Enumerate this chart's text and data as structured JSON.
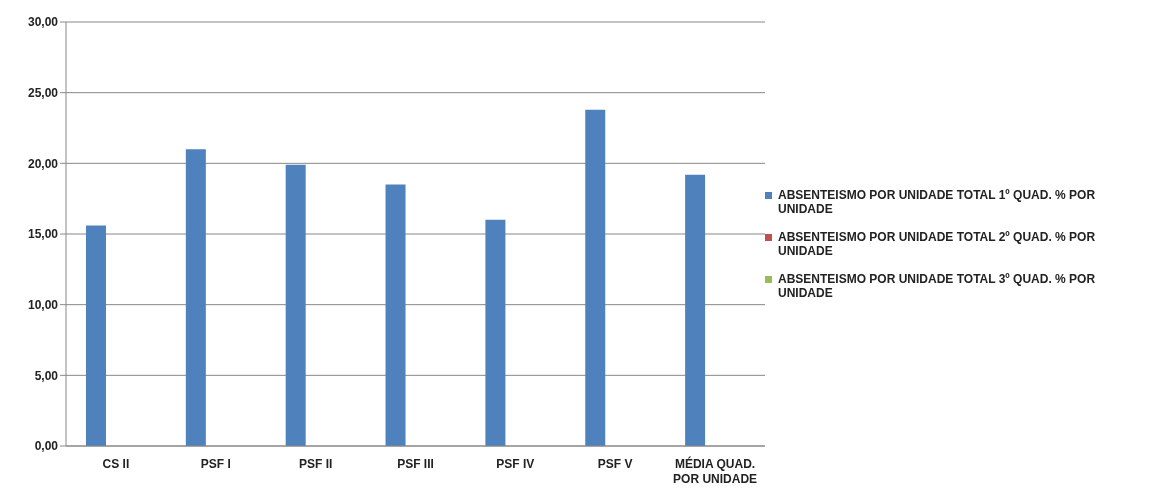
{
  "chart_data": {
    "type": "bar",
    "categories": [
      "CS II",
      "PSF I",
      "PSF II",
      "PSF III",
      "PSF IV",
      "PSF V",
      "MÉDIA QUAD. POR UNIDADE"
    ],
    "series": [
      {
        "name": "ABSENTEISMO POR UNIDADE TOTAL 1º QUAD.  % POR UNIDADE",
        "color": "#4f81bd",
        "values": [
          15.6,
          21.0,
          19.9,
          18.5,
          16.0,
          23.8,
          19.2
        ]
      },
      {
        "name": "ABSENTEISMO POR UNIDADE TOTAL 2º QUAD.  % POR UNIDADE",
        "color": "#c0504d",
        "values": [
          null,
          null,
          null,
          null,
          null,
          null,
          null
        ]
      },
      {
        "name": "ABSENTEISMO POR UNIDADE TOTAL 3º QUAD.  % POR UNIDADE",
        "color": "#9bbb59",
        "values": [
          null,
          null,
          null,
          null,
          null,
          null,
          null
        ]
      }
    ],
    "ylim": [
      0,
      30
    ],
    "yticks": [
      {
        "value": 0,
        "label": "0,00"
      },
      {
        "value": 5,
        "label": "5,00"
      },
      {
        "value": 10,
        "label": "10,00"
      },
      {
        "value": 15,
        "label": "15,00"
      },
      {
        "value": 20,
        "label": "20,00"
      },
      {
        "value": 25,
        "label": "25,00"
      },
      {
        "value": 30,
        "label": "30,00"
      }
    ],
    "grid": "y",
    "legend": "right"
  }
}
